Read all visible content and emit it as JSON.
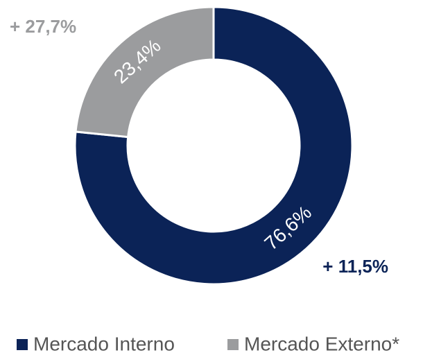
{
  "chart_data": {
    "type": "donut",
    "categories": [
      "Mercado Interno",
      "Mercado Externo*"
    ],
    "values": [
      76.6,
      23.4
    ],
    "value_labels": [
      "76,6%",
      "23,4%"
    ],
    "colors": [
      "#0b2357",
      "#9b9c9e"
    ],
    "annotations": [
      "+ 11,5%",
      "+ 27,7%"
    ],
    "legend": "bottom"
  }
}
